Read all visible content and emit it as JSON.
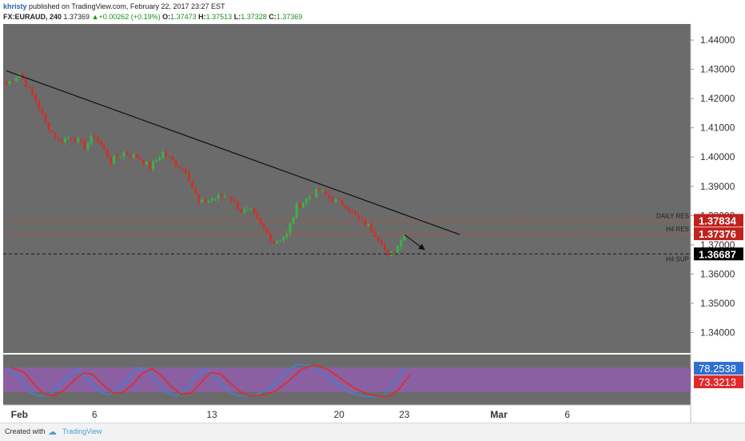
{
  "header": {
    "user": "khristy",
    "published_text": " published on TradingView.com, February 22, 2017 23:27 EST",
    "symbol": "FX:EURAUD, 240",
    "last": "1.37369",
    "change": "+0.00262 (+0.19%)",
    "o_label": "O:",
    "o_value": "1.37473",
    "h_label": "H:",
    "h_value": "1.37513",
    "l_label": "L:",
    "l_value": "1.37328",
    "c_label": "C:",
    "c_value": "1.37369"
  },
  "footer": {
    "created_with": "Created with",
    "brand": "TradingView"
  },
  "colors": {
    "pane_bg": "#6b6b6b",
    "bull": "#3bb34a",
    "bear": "#c8342e",
    "resistance": "#e0403a",
    "support": "#1a1a1a",
    "stoch_k": "#3b82d6",
    "stoch_d": "#e02a2a",
    "stoch_band": "#8e5fa8"
  },
  "chart_data": {
    "type": "candlestick",
    "timeframe": "240",
    "ylim": [
      1.333,
      1.4455
    ],
    "y_ticks": [
      "1.44000",
      "1.43000",
      "1.42000",
      "1.41000",
      "1.40000",
      "1.39000",
      "1.38000",
      "1.37000",
      "1.36000",
      "1.35000",
      "1.34000"
    ],
    "x_labels": [
      "Feb",
      "6",
      "13",
      "20",
      "23",
      "Mar",
      "6"
    ],
    "candle_path": [
      {
        "p": 1.425,
        "n": 0
      },
      {
        "p": 1.4285,
        "n": 4
      },
      {
        "p": 1.4195,
        "n": 9
      },
      {
        "p": 1.4115,
        "n": 12
      },
      {
        "p": 1.4055,
        "n": 16
      },
      {
        "p": 1.407,
        "n": 20
      },
      {
        "p": 1.4035,
        "n": 24
      },
      {
        "p": 1.4075,
        "n": 27
      },
      {
        "p": 1.3985,
        "n": 32
      },
      {
        "p": 1.4015,
        "n": 36
      },
      {
        "p": 1.3995,
        "n": 41
      },
      {
        "p": 1.3965,
        "n": 44
      },
      {
        "p": 1.4015,
        "n": 48
      },
      {
        "p": 1.3975,
        "n": 52
      },
      {
        "p": 1.3955,
        "n": 55
      },
      {
        "p": 1.384,
        "n": 59
      },
      {
        "p": 1.386,
        "n": 64
      },
      {
        "p": 1.387,
        "n": 68
      },
      {
        "p": 1.3815,
        "n": 72
      },
      {
        "p": 1.3815,
        "n": 75
      },
      {
        "p": 1.3765,
        "n": 78
      },
      {
        "p": 1.371,
        "n": 82
      },
      {
        "p": 1.3735,
        "n": 86
      },
      {
        "p": 1.383,
        "n": 89
      },
      {
        "p": 1.3865,
        "n": 93
      },
      {
        "p": 1.3885,
        "n": 96
      },
      {
        "p": 1.3855,
        "n": 100
      },
      {
        "p": 1.3835,
        "n": 104
      },
      {
        "p": 1.3785,
        "n": 108
      },
      {
        "p": 1.3765,
        "n": 111
      },
      {
        "p": 1.371,
        "n": 115
      },
      {
        "p": 1.3655,
        "n": 117
      },
      {
        "p": 1.3695,
        "n": 120
      },
      {
        "p": 1.3725,
        "n": 121
      },
      {
        "p": 1.3737,
        "n": 122
      }
    ],
    "trendline": {
      "from": [
        0,
        1.4295
      ],
      "to": [
        139,
        1.3735
      ]
    },
    "arrow": {
      "from": [
        122,
        1.3735
      ],
      "to": [
        128,
        1.3685
      ]
    },
    "levels": [
      {
        "name": "DAILY RES",
        "value": "1.37834",
        "price": 1.37834,
        "style": "resistance"
      },
      {
        "name": "H4 RES",
        "value": "1.37376",
        "price": 1.37376,
        "style": "resistance"
      },
      {
        "name": "H4 SUP",
        "value": "1.36687",
        "price": 1.36687,
        "style": "support"
      }
    ],
    "stoch": {
      "k_value": "78.2538",
      "d_value": "73.3213",
      "ylim": [
        0,
        100
      ],
      "band": [
        20,
        80
      ],
      "k_path": [
        {
          "v": 80,
          "n": 0
        },
        {
          "v": 55,
          "n": 4
        },
        {
          "v": 20,
          "n": 7
        },
        {
          "v": 10,
          "n": 10
        },
        {
          "v": 12,
          "n": 13
        },
        {
          "v": 35,
          "n": 16
        },
        {
          "v": 60,
          "n": 19
        },
        {
          "v": 75,
          "n": 22
        },
        {
          "v": 50,
          "n": 25
        },
        {
          "v": 25,
          "n": 28
        },
        {
          "v": 12,
          "n": 31
        },
        {
          "v": 25,
          "n": 34
        },
        {
          "v": 50,
          "n": 37
        },
        {
          "v": 80,
          "n": 40
        },
        {
          "v": 75,
          "n": 43
        },
        {
          "v": 45,
          "n": 46
        },
        {
          "v": 20,
          "n": 49
        },
        {
          "v": 10,
          "n": 52
        },
        {
          "v": 25,
          "n": 55
        },
        {
          "v": 60,
          "n": 58
        },
        {
          "v": 75,
          "n": 61
        },
        {
          "v": 55,
          "n": 64
        },
        {
          "v": 30,
          "n": 67
        },
        {
          "v": 12,
          "n": 70
        },
        {
          "v": 10,
          "n": 73
        },
        {
          "v": 15,
          "n": 77
        },
        {
          "v": 30,
          "n": 81
        },
        {
          "v": 65,
          "n": 85
        },
        {
          "v": 88,
          "n": 89
        },
        {
          "v": 85,
          "n": 93
        },
        {
          "v": 65,
          "n": 97
        },
        {
          "v": 40,
          "n": 101
        },
        {
          "v": 20,
          "n": 105
        },
        {
          "v": 10,
          "n": 109
        },
        {
          "v": 8,
          "n": 113
        },
        {
          "v": 12,
          "n": 116
        },
        {
          "v": 45,
          "n": 119
        },
        {
          "v": 78,
          "n": 122
        }
      ],
      "d_lag": 1.6
    }
  }
}
